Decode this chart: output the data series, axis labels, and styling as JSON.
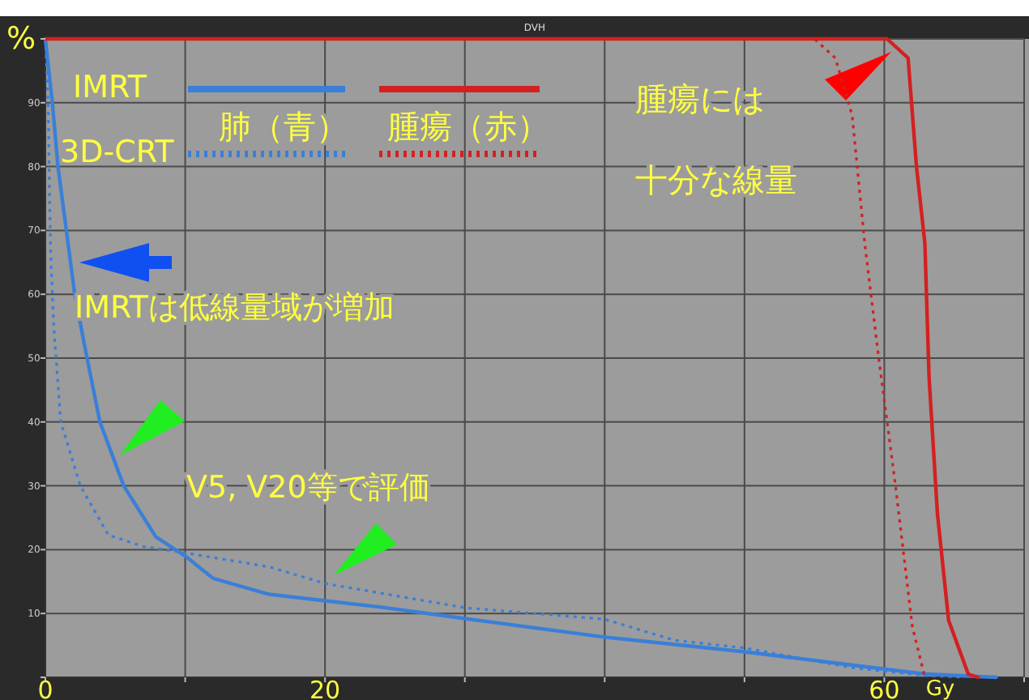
{
  "chart_data": {
    "type": "line",
    "title": "DVH",
    "xlabel": "Gy",
    "xlim": [
      0,
      70
    ],
    "xticks": [
      {
        "value": 0,
        "label": "0"
      },
      {
        "value": 10,
        "label": null
      },
      {
        "value": 20,
        "label": "20"
      },
      {
        "value": 30,
        "label": null
      },
      {
        "value": 40,
        "label": null
      },
      {
        "value": 50,
        "label": null
      },
      {
        "value": 60,
        "label": "60"
      },
      {
        "value": 70,
        "label": null
      }
    ],
    "ylabel": "%",
    "ylim": [
      0,
      100
    ],
    "yticks": [
      {
        "value": 0,
        "label": null
      },
      10,
      20,
      30,
      40,
      50,
      60,
      70,
      80,
      90,
      {
        "value": 100,
        "label": null
      }
    ],
    "grid": true,
    "marker": "none",
    "series": [
      {
        "color": "#3a7fd8",
        "line_style": "solid",
        "x": [
          0,
          0.5,
          0.9,
          1.5,
          2.1,
          2.8,
          3.9,
          5.6,
          7.9,
          10,
          12,
          16,
          20,
          24,
          30,
          40,
          50,
          60,
          63,
          68
        ],
        "values": [
          100,
          90,
          80,
          70,
          60,
          52,
          40,
          30,
          22,
          19,
          15.5,
          13,
          12,
          11,
          9.2,
          6.3,
          4,
          1.3,
          0.5,
          0
        ]
      },
      {
        "color": "#3a7fd8",
        "line_style": "dotted",
        "x": [
          0,
          0.2,
          0.3,
          0.4,
          0.6,
          1.1,
          2.5,
          4.5,
          7,
          10,
          16,
          20,
          30,
          40,
          45,
          50,
          57.7,
          62.9,
          65.7
        ],
        "values": [
          100,
          90,
          75,
          65,
          55,
          40,
          30,
          22.3,
          20.5,
          19.5,
          17.3,
          14.7,
          10.9,
          9.1,
          5.8,
          4.6,
          1.5,
          0.3,
          0
        ]
      },
      {
        "color": "#d42020",
        "line_style": "solid",
        "x": [
          0,
          60.2,
          61.7,
          62.3,
          62.9,
          63.2,
          63.8,
          64.6,
          66,
          66.7
        ],
        "values": [
          100,
          100,
          97,
          80,
          68,
          47,
          25.6,
          8.9,
          0.5,
          0
        ]
      },
      {
        "color": "#d42020",
        "line_style": "dotted",
        "x": [
          0,
          55,
          56.5,
          57.7,
          58.6,
          59.6,
          60.8,
          62,
          62.9
        ],
        "values": [
          100,
          100,
          97,
          88,
          68,
          50,
          30,
          8,
          0
        ]
      }
    ],
    "annotations": [
      "IMRT",
      "3D-CRT",
      "肺（青）",
      "腫瘍（赤）",
      "腫瘍には",
      "十分な線量",
      "IMRTは低線量域が増加",
      "V5, V20等で評価"
    ]
  }
}
